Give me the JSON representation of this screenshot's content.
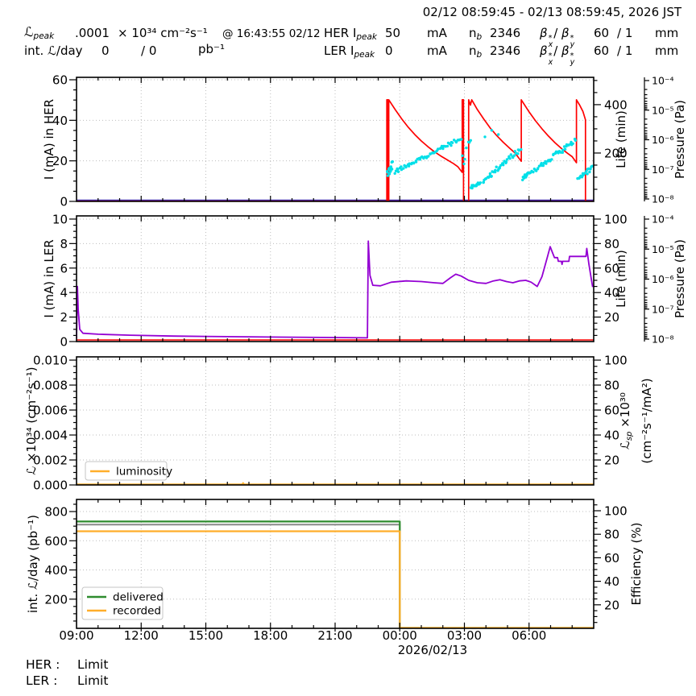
{
  "header": {
    "timerange": "02/12 08:59:45 - 02/13 08:59:45, 2026 JST",
    "lpeak": {
      "sym": "ℒ",
      "sub": "peak",
      "value": ".0001",
      "unit": "× 10³⁴ cm⁻²s⁻¹",
      "at": "@ 16:43:55 02/12"
    },
    "intlday": {
      "label": "int. ℒ/day",
      "value": "0",
      "value2": "/ 0",
      "unit": "pb⁻¹"
    },
    "her": {
      "name": "HER I",
      "name_sub": "peak",
      "current": "50",
      "current_unit": "mA",
      "nb": "n",
      "nb_sub": "b",
      "nb_value": "2346",
      "beta_base": "β",
      "beta_sup": "*",
      "beta_subx": "x",
      "beta_mid": "/",
      "beta_suby": "y",
      "beta_value": "60",
      "beta_value2": "/ 1",
      "beta_unit": "mm"
    },
    "ler": {
      "name": "LER I",
      "name_sub": "peak",
      "current": "0",
      "current_unit": "mA",
      "nb": "n",
      "nb_sub": "b",
      "nb_value": "2346",
      "beta_base": "β",
      "beta_sup": "*",
      "beta_subx": "x",
      "beta_mid": "/",
      "beta_suby": "y",
      "beta_value": "60",
      "beta_value2": "/ 1",
      "beta_unit": "mm"
    }
  },
  "footer": {
    "her_label": "HER :",
    "her_value": "Limit",
    "ler_label": "LER :",
    "ler_value": "Limit"
  },
  "colors": {
    "red": "#ff0000",
    "cyan": "#00dfe8",
    "purple": "#9400d3",
    "navy": "#31319c",
    "green": "#2e8b2e",
    "orange": "#ffae2a",
    "gray": "#8a8a8a",
    "grid": "#bdbdbd"
  },
  "chart_data": [
    {
      "id": "her-ring",
      "type": "line",
      "ylabel": "I (mA) in HER",
      "ylim": [
        0,
        61.2
      ],
      "yticks": [
        "0",
        "20",
        "40",
        "60"
      ],
      "right_axis": {
        "label": "Life (min)",
        "ticks": [
          "200",
          "400"
        ],
        "tick_values": [
          200,
          400
        ],
        "lim": [
          0,
          513
        ]
      },
      "pressure_axis": {
        "label": "Pressure (Pa)",
        "ticks": [
          "10⁻⁴",
          "10⁻⁵",
          "10⁻⁶",
          "10⁻⁷",
          "10⁻⁸"
        ]
      },
      "series": [
        {
          "name": "her-current-line",
          "color": "navy",
          "width": 2,
          "axis": "left",
          "points": [
            [
              0,
              0.5
            ],
            [
              24,
              0.5
            ]
          ]
        },
        {
          "name": "her-current-line2",
          "color": "purple",
          "width": 1.4,
          "axis": "left",
          "points": [
            [
              0,
              0.2
            ],
            [
              24,
              0.2
            ]
          ]
        },
        {
          "name": "her-lifetime-line",
          "color": "red",
          "width": 1.7,
          "axis": "right",
          "points": [
            [
              0,
              0
            ],
            [
              14.4,
              0
            ],
            [
              14.4,
              420
            ],
            [
              14.44,
              420
            ],
            [
              14.44,
              0
            ],
            [
              14.49,
              0
            ],
            [
              14.49,
              420
            ],
            [
              14.8,
              378
            ],
            [
              15.1,
              340
            ],
            [
              15.4,
              306
            ],
            [
              15.7,
              276
            ],
            [
              16.0,
              250
            ],
            [
              16.3,
              227
            ],
            [
              16.6,
              206
            ],
            [
              16.9,
              188
            ],
            [
              17.2,
              172
            ],
            [
              17.5,
              156
            ],
            [
              17.7,
              143
            ],
            [
              17.9,
              120
            ],
            [
              17.9,
              420
            ],
            [
              17.96,
              420
            ],
            [
              17.96,
              0
            ],
            [
              18.2,
              0
            ],
            [
              18.2,
              420
            ],
            [
              18.28,
              398
            ],
            [
              18.34,
              420
            ],
            [
              18.6,
              380
            ],
            [
              18.9,
              340
            ],
            [
              19.2,
              303
            ],
            [
              19.5,
              272
            ],
            [
              19.8,
              245
            ],
            [
              20.1,
              220
            ],
            [
              20.35,
              200
            ],
            [
              20.64,
              166
            ],
            [
              20.64,
              420
            ],
            [
              21.0,
              370
            ],
            [
              21.3,
              333
            ],
            [
              21.6,
              300
            ],
            [
              21.9,
              270
            ],
            [
              22.2,
              243
            ],
            [
              22.5,
              219
            ],
            [
              22.8,
              198
            ],
            [
              23.0,
              185
            ],
            [
              23.2,
              160
            ],
            [
              23.2,
              420
            ],
            [
              23.35,
              398
            ],
            [
              23.5,
              372
            ],
            [
              23.62,
              337
            ],
            [
              23.62,
              0
            ],
            [
              24,
              0
            ]
          ]
        }
      ],
      "scatter": {
        "name": "her-lifetime-points",
        "color": "cyan",
        "axis": "right",
        "clusters": [
          {
            "t0": 14.42,
            "t1": 14.68,
            "v0": 108,
            "v1": 152,
            "n": 16,
            "jitter": 16
          },
          {
            "t0": 14.75,
            "t1": 17.88,
            "v0": 122,
            "v1": 262,
            "n": 62,
            "jitter": 9
          },
          {
            "t0": 17.93,
            "t1": 18.28,
            "v0": 160,
            "v1": 250,
            "n": 7,
            "jitter": 30
          },
          {
            "t0": 18.3,
            "t1": 18.75,
            "v0": 58,
            "v1": 76,
            "n": 14,
            "jitter": 7
          },
          {
            "t0": 18.85,
            "t1": 20.6,
            "v0": 82,
            "v1": 218,
            "n": 42,
            "jitter": 11
          },
          {
            "t0": 18.95,
            "t1": 19.55,
            "v0": 275,
            "v1": 290,
            "n": 3,
            "jitter": 20
          },
          {
            "t0": 20.7,
            "t1": 20.95,
            "v0": 95,
            "v1": 112,
            "n": 12,
            "jitter": 9
          },
          {
            "t0": 21.0,
            "t1": 23.15,
            "v0": 112,
            "v1": 252,
            "n": 46,
            "jitter": 10
          },
          {
            "t0": 23.28,
            "t1": 23.95,
            "v0": 98,
            "v1": 138,
            "n": 18,
            "jitter": 9
          }
        ]
      }
    },
    {
      "id": "ler-ring",
      "type": "line",
      "ylabel": "I (mA) in LER",
      "ylim": [
        0,
        10.26
      ],
      "yticks": [
        "0",
        "2",
        "4",
        "6",
        "8",
        "10"
      ],
      "right_axis": {
        "label": "Life (min)",
        "ticks": [
          "20",
          "40",
          "60",
          "80",
          "100"
        ],
        "tick_values": [
          20,
          40,
          60,
          80,
          100
        ],
        "lim": [
          0,
          102.6
        ]
      },
      "pressure_axis": {
        "label": "Pressure (Pa)",
        "ticks": [
          "10⁻⁴",
          "10⁻⁵",
          "10⁻⁶",
          "10⁻⁷",
          "10⁻⁸"
        ]
      },
      "series": [
        {
          "name": "ler-lifetime-line",
          "color": "purple",
          "width": 1.8,
          "axis": "left",
          "points": [
            [
              0,
              0.25
            ],
            [
              0.04,
              4.5
            ],
            [
              0.08,
              2.6
            ],
            [
              0.15,
              1.0
            ],
            [
              0.3,
              0.68
            ],
            [
              1.0,
              0.6
            ],
            [
              2.5,
              0.52
            ],
            [
              4.5,
              0.45
            ],
            [
              7,
              0.4
            ],
            [
              9.5,
              0.36
            ],
            [
              12,
              0.33
            ],
            [
              13.5,
              0.3
            ],
            [
              13.54,
              8.2
            ],
            [
              13.62,
              5.4
            ],
            [
              13.75,
              4.6
            ],
            [
              14.1,
              4.55
            ],
            [
              14.6,
              4.85
            ],
            [
              15.3,
              4.95
            ],
            [
              16,
              4.9
            ],
            [
              16.6,
              4.8
            ],
            [
              17,
              4.75
            ],
            [
              17.35,
              5.2
            ],
            [
              17.6,
              5.5
            ],
            [
              17.85,
              5.35
            ],
            [
              18.2,
              5.0
            ],
            [
              18.6,
              4.8
            ],
            [
              19,
              4.75
            ],
            [
              19.35,
              4.95
            ],
            [
              19.65,
              5.05
            ],
            [
              19.95,
              4.9
            ],
            [
              20.25,
              4.8
            ],
            [
              20.55,
              4.95
            ],
            [
              20.85,
              5.0
            ],
            [
              21.1,
              4.85
            ],
            [
              21.38,
              4.5
            ],
            [
              21.6,
              5.3
            ],
            [
              21.85,
              6.9
            ],
            [
              21.98,
              7.75
            ],
            [
              22.08,
              7.3
            ],
            [
              22.18,
              6.85
            ],
            [
              22.32,
              6.85
            ],
            [
              22.36,
              6.55
            ],
            [
              22.5,
              6.55
            ],
            [
              22.53,
              6.3
            ],
            [
              22.56,
              6.55
            ],
            [
              22.85,
              6.55
            ],
            [
              22.88,
              6.95
            ],
            [
              23.64,
              6.95
            ],
            [
              23.68,
              7.6
            ],
            [
              23.78,
              6.3
            ],
            [
              23.88,
              5.2
            ],
            [
              23.95,
              4.45
            ]
          ]
        },
        {
          "name": "ler-current-line",
          "color": "red",
          "width": 1.6,
          "axis": "left",
          "points": [
            [
              0,
              0.13
            ],
            [
              24,
              0.13
            ]
          ]
        }
      ]
    },
    {
      "id": "luminosity",
      "type": "line",
      "ylabel": "ℒ ×10³⁴ (cm⁻²s⁻¹)",
      "ylim": [
        0,
        0.01026
      ],
      "yticks": [
        "0.000",
        "0.002",
        "0.004",
        "0.006",
        "0.008",
        "0.010"
      ],
      "right_axis": {
        "label_sym": "ℒ",
        "label_sub": "sp",
        "label_rest": " ×10³⁰",
        "label_line2": "(cm⁻²s⁻¹/mA²)",
        "ticks": [
          "20",
          "40",
          "60",
          "80",
          "100"
        ],
        "tick_values": [
          20,
          40,
          60,
          80,
          100
        ],
        "lim": [
          0,
          102.6
        ]
      },
      "legend": [
        {
          "label": "luminosity",
          "color": "orange"
        }
      ],
      "series": [
        {
          "name": "luminosity-line",
          "color": "orange",
          "width": 1.8,
          "axis": "left",
          "points": [
            [
              0,
              5e-05
            ],
            [
              7.68,
              5e-05
            ],
            [
              7.73,
              0.00016
            ],
            [
              7.78,
              5e-05
            ],
            [
              24,
              5e-05
            ]
          ]
        }
      ]
    },
    {
      "id": "integrated-luminosity",
      "type": "line",
      "ylabel": "int. ℒ/day (pb⁻¹)",
      "ylim": [
        0,
        883
      ],
      "yticks": [
        "200",
        "400",
        "600",
        "800"
      ],
      "right_axis": {
        "label": "Efficiency (%)",
        "ticks": [
          "20",
          "40",
          "60",
          "80",
          "100"
        ],
        "tick_values": [
          20,
          40,
          60,
          80,
          100
        ],
        "lim": [
          0,
          109.6
        ]
      },
      "legend": [
        {
          "label": "delivered",
          "color": "green"
        },
        {
          "label": "recorded",
          "color": "orange"
        }
      ],
      "xtick_labels": [
        "09:00",
        "12:00",
        "15:00",
        "18:00",
        "21:00",
        "00:00",
        "03:00",
        "06:00"
      ],
      "xdate_label": "2026/02/13",
      "series": [
        {
          "name": "reference-line",
          "color": "gray",
          "width": 2,
          "axis": "left",
          "points": [
            [
              0,
              710
            ],
            [
              15,
              710
            ],
            [
              15,
              0
            ],
            [
              24,
              0
            ]
          ]
        },
        {
          "name": "delivered-line",
          "color": "green",
          "width": 2.2,
          "axis": "left",
          "points": [
            [
              0,
              732
            ],
            [
              15,
              732
            ],
            [
              15,
              2
            ],
            [
              24,
              2
            ]
          ]
        },
        {
          "name": "recorded-line",
          "color": "orange",
          "width": 2.2,
          "axis": "left",
          "points": [
            [
              0,
              665
            ],
            [
              15,
              665
            ],
            [
              15,
              4
            ],
            [
              24,
              4
            ]
          ]
        }
      ]
    }
  ]
}
